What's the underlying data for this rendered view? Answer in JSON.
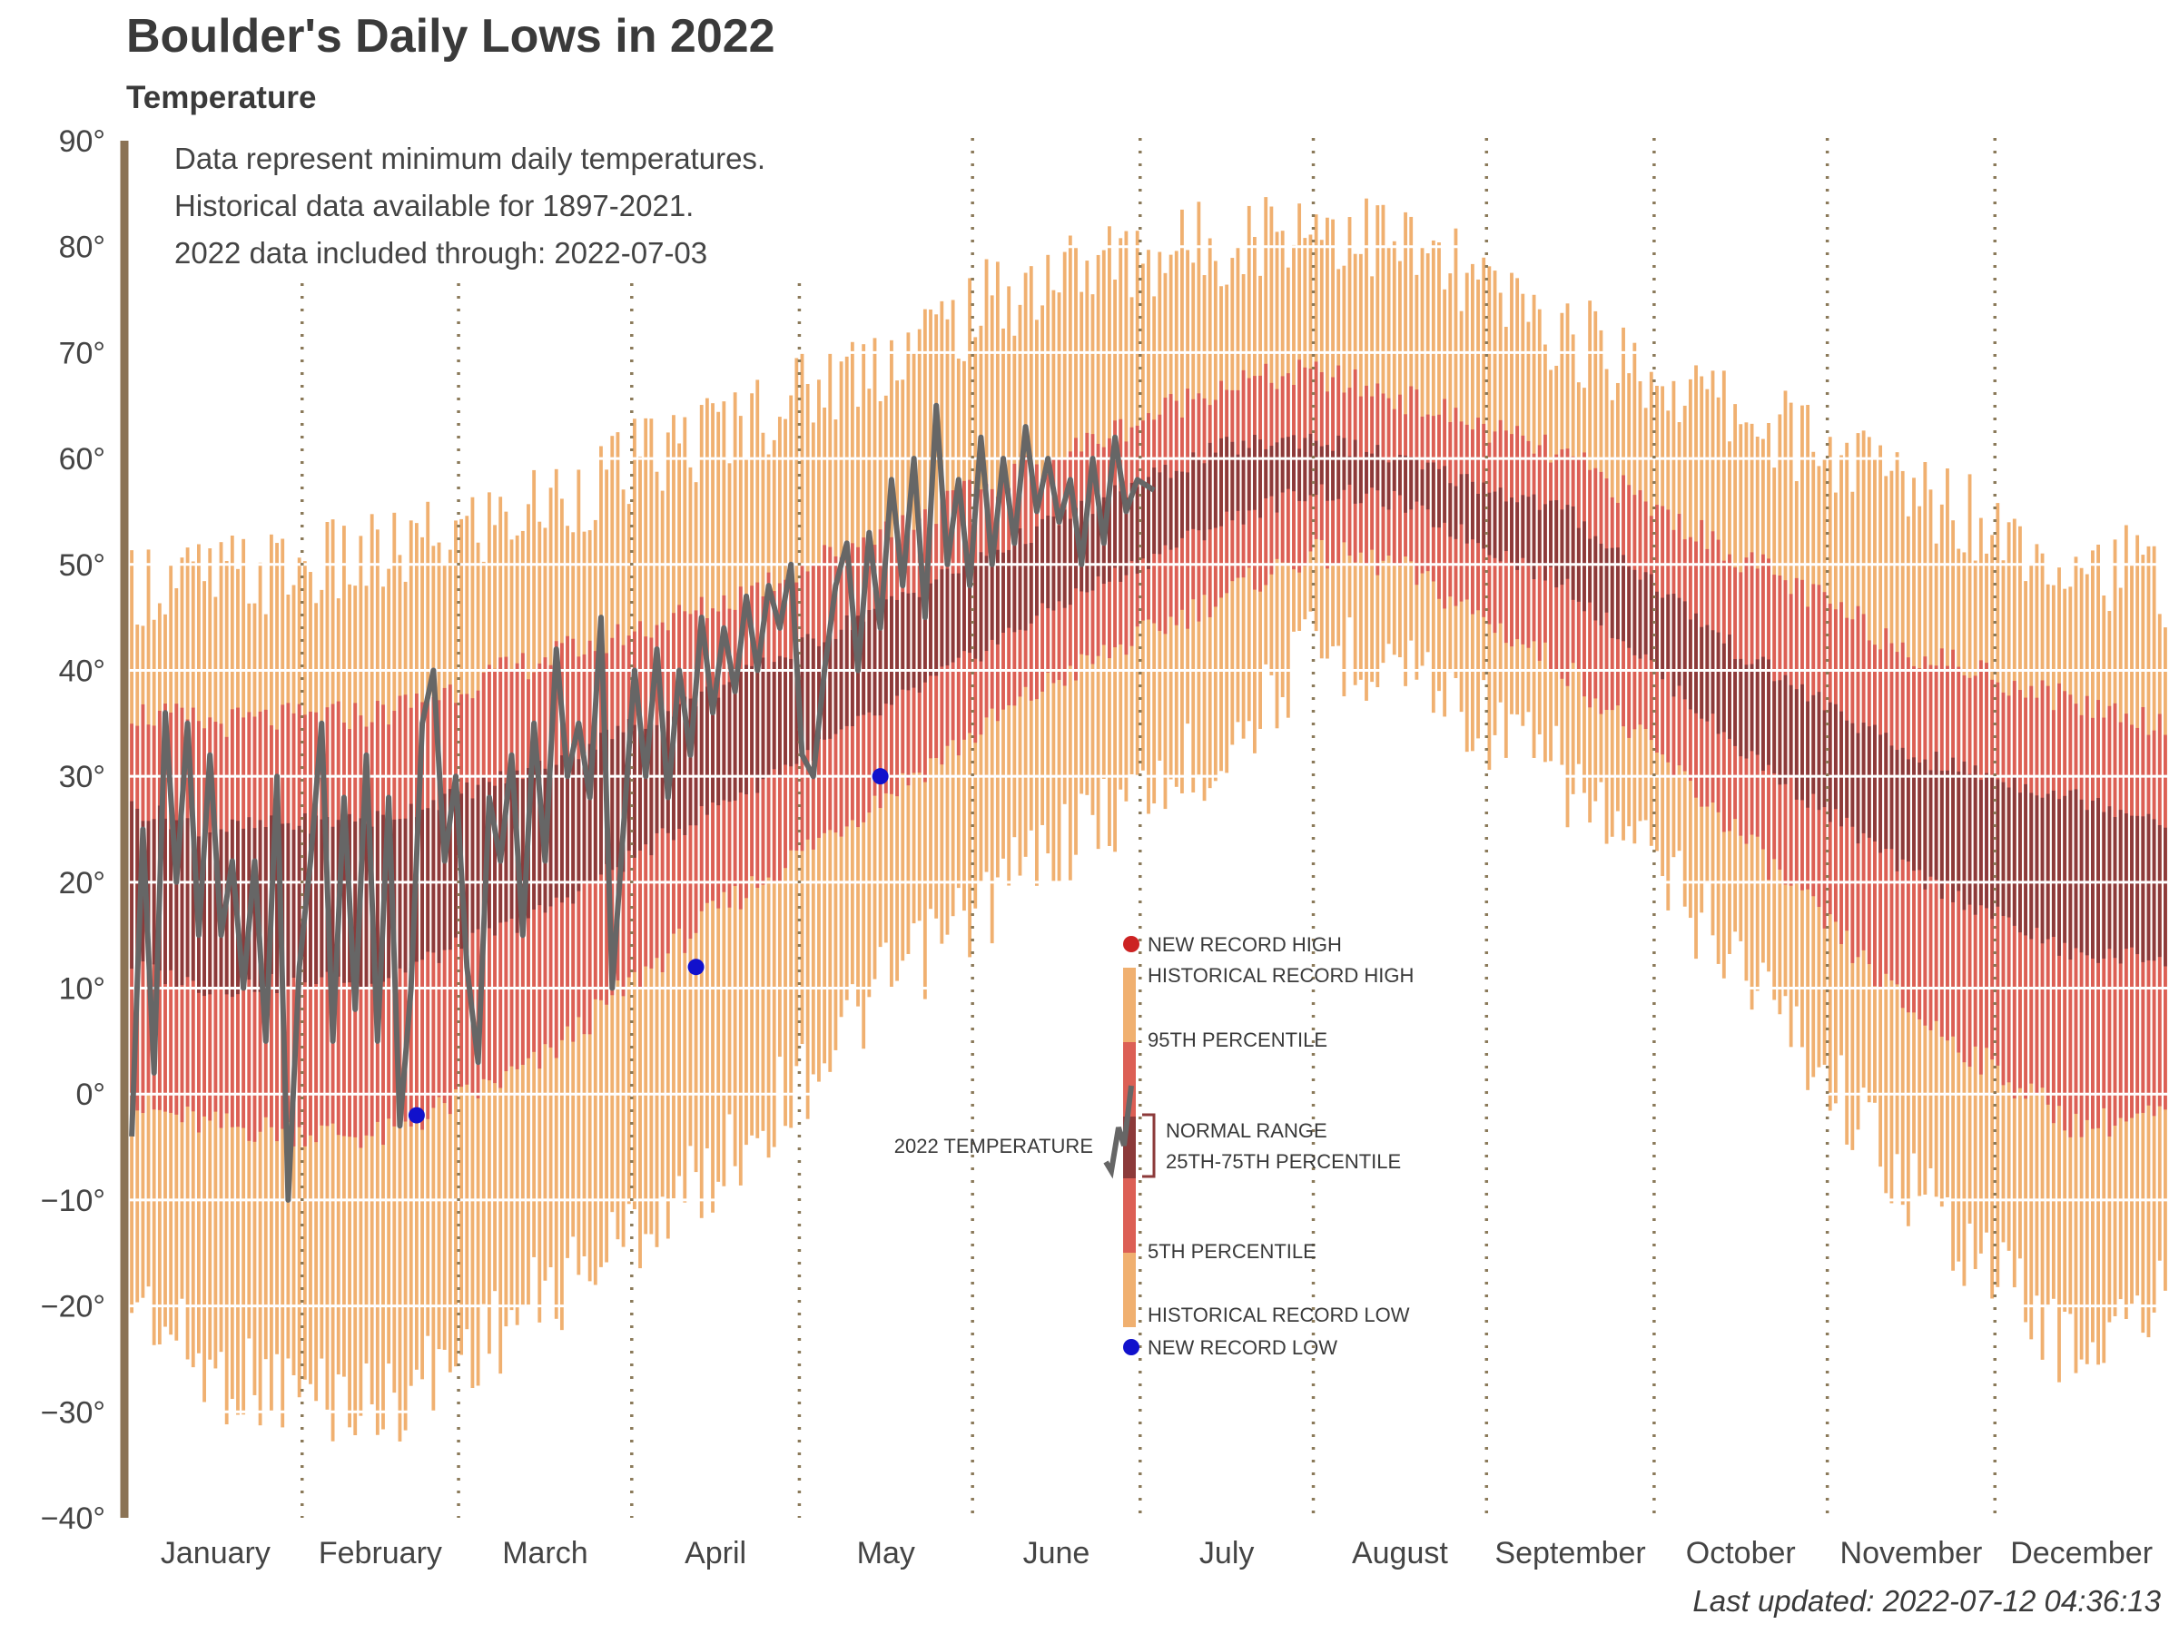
{
  "title": "Boulder's Daily Lows in 2022",
  "subtitle": "Temperature",
  "last_updated": "Last updated: 2022-07-12 04:36:13",
  "notes": [
    "Data represent minimum daily temperatures.",
    "Historical data available for 1897-2021.",
    "2022 data included through: 2022-07-03"
  ],
  "legend": {
    "new_record_high": "NEW RECORD HIGH",
    "historical_record_high": "HISTORICAL RECORD HIGH",
    "p95": "95TH PERCENTILE",
    "normal_range": "NORMAL RANGE",
    "normal_range_sub": "25TH-75TH PERCENTILE",
    "p5": "5TH PERCENTILE",
    "historical_record_low": "HISTORICAL RECORD LOW",
    "new_record_low": "NEW RECORD LOW",
    "current_year": "2022 TEMPERATURE"
  },
  "colors": {
    "record": "#f0b070",
    "percentile": "#dc5f55",
    "normal": "#8c3a3a",
    "current": "#666666",
    "new_low": "#1111cc",
    "new_high": "#cc2222",
    "axis": "#8b7355",
    "month_sep": "#8b7a5a"
  },
  "chart_data": {
    "type": "bar",
    "ylim": [
      -40,
      90
    ],
    "yticks": [
      -40,
      -30,
      -20,
      -10,
      0,
      10,
      20,
      30,
      40,
      50,
      60,
      70,
      80,
      90
    ],
    "ytick_labels": [
      "−40°",
      "−30°",
      "−20°",
      "−10°",
      "0°",
      "10°",
      "20°",
      "30°",
      "40°",
      "50°",
      "60°",
      "70°",
      "80°",
      "90°"
    ],
    "months": [
      "January",
      "February",
      "March",
      "April",
      "May",
      "June",
      "July",
      "August",
      "September",
      "October",
      "November",
      "December"
    ],
    "month_days": [
      31,
      28,
      31,
      30,
      31,
      30,
      31,
      31,
      30,
      31,
      30,
      31
    ],
    "days_of_year": 365,
    "profile_anchors": {
      "day": [
        1,
        15,
        46,
        74,
        105,
        135,
        166,
        196,
        212,
        227,
        258,
        288,
        319,
        349,
        365
      ],
      "record_low": [
        -14,
        -22,
        -25,
        -15,
        -3,
        14,
        28,
        37,
        46,
        46,
        34,
        18,
        -4,
        -20,
        -15
      ],
      "p05": [
        -1,
        -3,
        -4,
        3,
        17,
        28,
        39,
        47,
        51,
        50,
        40,
        25,
        8,
        -3,
        -2
      ],
      "p25": [
        12,
        10,
        11,
        17,
        27,
        36,
        46,
        54,
        57,
        56,
        48,
        33,
        21,
        13,
        13
      ],
      "p75": [
        27,
        25,
        26,
        31,
        38,
        46,
        54,
        61,
        62,
        60,
        55,
        42,
        32,
        28,
        26
      ],
      "p95": [
        36,
        35,
        36,
        41,
        46,
        53,
        60,
        67,
        68,
        66,
        60,
        51,
        42,
        37,
        35
      ],
      "record_high": [
        44,
        44,
        46,
        51,
        58,
        65,
        73,
        76,
        78,
        76,
        67,
        60,
        53,
        46,
        44
      ]
    },
    "current_year": {
      "year": 2022,
      "through_day": 184,
      "anchors_day": [
        1,
        3,
        5,
        7,
        9,
        11,
        13,
        15,
        17,
        19,
        21,
        23,
        25,
        27,
        29,
        31,
        33,
        35,
        37,
        39,
        41,
        43,
        45,
        47,
        49,
        51,
        53,
        55,
        57,
        59,
        61,
        63,
        65,
        67,
        69,
        71,
        73,
        75,
        77,
        79,
        81,
        83,
        85,
        87,
        89,
        91,
        93,
        95,
        97,
        99,
        101,
        103,
        105,
        107,
        109,
        111,
        113,
        115,
        117,
        119,
        121,
        123,
        125,
        127,
        129,
        131,
        133,
        135,
        137,
        139,
        141,
        143,
        145,
        147,
        149,
        151,
        153,
        155,
        157,
        159,
        161,
        163,
        165,
        167,
        169,
        171,
        173,
        175,
        177,
        179,
        181,
        184
      ],
      "anchors_temp": [
        -4,
        25,
        2,
        36,
        20,
        35,
        15,
        32,
        15,
        22,
        10,
        22,
        5,
        30,
        -10,
        12,
        22,
        35,
        5,
        28,
        8,
        32,
        5,
        28,
        -3,
        10,
        35,
        40,
        22,
        30,
        12,
        3,
        28,
        22,
        32,
        15,
        35,
        22,
        42,
        30,
        35,
        28,
        45,
        10,
        25,
        40,
        30,
        42,
        28,
        40,
        32,
        45,
        36,
        44,
        38,
        47,
        40,
        48,
        44,
        50,
        32,
        30,
        40,
        48,
        52,
        40,
        53,
        44,
        58,
        48,
        60,
        45,
        65,
        50,
        58,
        48,
        62,
        50,
        60,
        52,
        63,
        55,
        60,
        54,
        58,
        50,
        60,
        52,
        62,
        55,
        58,
        57
      ]
    },
    "new_record_lows": [
      {
        "day": 52,
        "temp": -2
      },
      {
        "day": 102,
        "temp": 12
      },
      {
        "day": 135,
        "temp": 30
      }
    ],
    "new_record_highs": []
  }
}
